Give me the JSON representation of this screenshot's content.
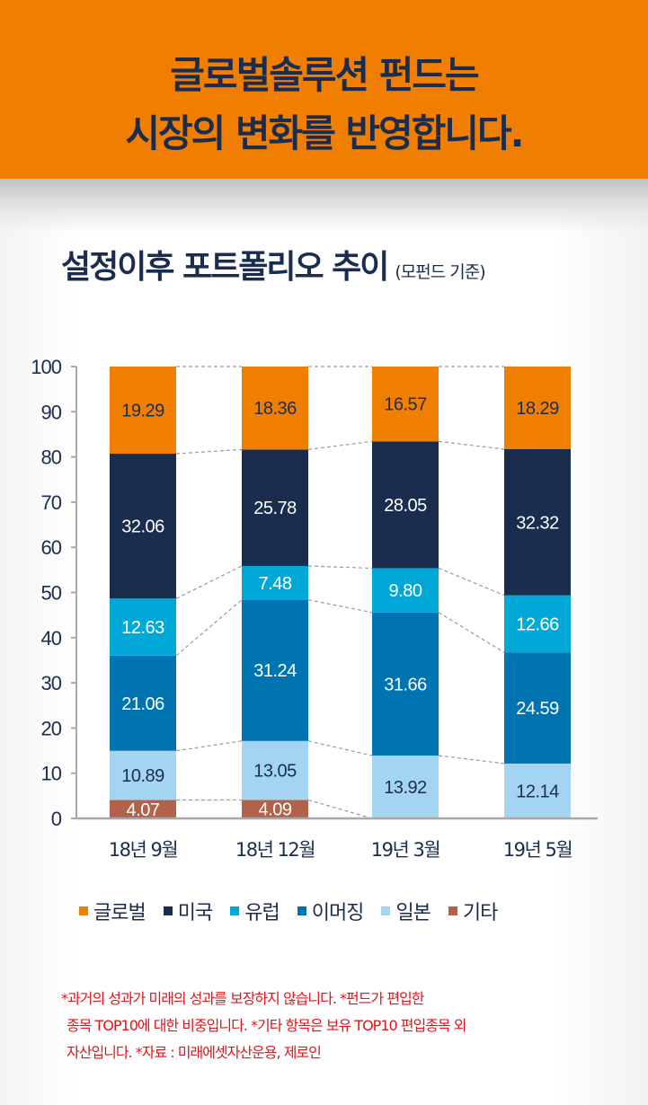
{
  "header": {
    "line1": "글로벌솔루션 펀드는",
    "line2": "시장의 변화를 반영합니다."
  },
  "title": {
    "main": "설정이후 포트폴리오 추이",
    "sub": "(모펀드 기준)"
  },
  "colors": {
    "header_bg": "#f07e00",
    "text_navy": "#1b2d4f",
    "footnote_red": "#e3141b"
  },
  "chart_data": {
    "type": "bar",
    "stacked": true,
    "title": "설정이후 포트폴리오 추이 (모펀드 기준)",
    "xlabel": "",
    "ylabel": "",
    "ylim": [
      0,
      100
    ],
    "yticks": [
      0,
      10,
      20,
      30,
      40,
      50,
      60,
      70,
      80,
      90,
      100
    ],
    "grid": false,
    "legend_position": "bottom",
    "categories": [
      "18년 9월",
      "18년 12월",
      "19년 3월",
      "19년 5월"
    ],
    "series": [
      {
        "name": "기타",
        "color": "#b2624a",
        "label_color": "#ffffff",
        "values": [
          4.07,
          4.09,
          null,
          null
        ]
      },
      {
        "name": "일본",
        "color": "#a3d5f3",
        "label_color": "#1b2d4f",
        "values": [
          10.89,
          13.05,
          13.92,
          12.14
        ]
      },
      {
        "name": "이머징",
        "color": "#0074b0",
        "label_color": "#ffffff",
        "values": [
          21.06,
          31.24,
          31.66,
          24.59
        ]
      },
      {
        "name": "유럽",
        "color": "#00a8d8",
        "label_color": "#ffffff",
        "values": [
          12.63,
          7.48,
          9.8,
          12.66
        ]
      },
      {
        "name": "미국",
        "color": "#1b2d4f",
        "label_color": "#ffffff",
        "values": [
          32.06,
          25.78,
          28.05,
          32.32
        ]
      },
      {
        "name": "글로벌",
        "color": "#f07e00",
        "label_color": "#1b2d4f",
        "values": [
          19.29,
          18.36,
          16.57,
          18.29
        ]
      }
    ],
    "value_labels": [
      [
        "4.07",
        "10.89",
        "21.06",
        "12.63",
        "32.06",
        "19.29"
      ],
      [
        "4.09",
        "13.05",
        "31.24",
        "7.48",
        "25.78",
        "18.36"
      ],
      [
        "",
        "13.92",
        "31.66",
        "9.80",
        "28.05",
        "16.57"
      ],
      [
        "",
        "12.14",
        "24.59",
        "12.66",
        "32.32",
        "18.29"
      ]
    ],
    "connector_lines": "dashed"
  },
  "legend": [
    {
      "label": "글로벌",
      "color": "#f07e00"
    },
    {
      "label": "미국",
      "color": "#1b2d4f"
    },
    {
      "label": "유럽",
      "color": "#00a8d8"
    },
    {
      "label": "이머징",
      "color": "#0074b0"
    },
    {
      "label": "일본",
      "color": "#a3d5f3"
    },
    {
      "label": "기타",
      "color": "#b2624a"
    }
  ],
  "footnote": {
    "line1": "*과거의 성과가 미래의 성과를 보장하지 않습니다. *펀드가 편입한",
    "line2": "종목 TOP10에 대한 비중입니다. *기타 항목은 보유 TOP10 편입종목 외",
    "line3": "자산입니다. *자료 : 미래에셋자산운용, 제로인"
  }
}
